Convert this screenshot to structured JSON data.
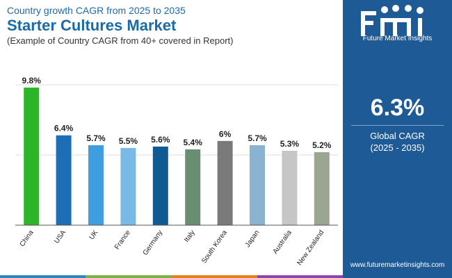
{
  "header": {
    "subtitle": "Country growth CAGR from 2025 to 2035",
    "title": "Starter Cultures Market",
    "note": "(Example of Country CAGR from 40+ covered in Report)"
  },
  "chart_data": {
    "type": "bar",
    "categories": [
      "China",
      "USA",
      "UK",
      "France",
      "Germany",
      "Italy",
      "South Korea",
      "Japan",
      "Australia",
      "New Zealand"
    ],
    "values": [
      9.8,
      6.4,
      5.7,
      5.5,
      5.6,
      5.4,
      6,
      5.7,
      5.3,
      5.2
    ],
    "labels": [
      "9.8%",
      "6.4%",
      "5.7%",
      "5.5%",
      "5.6%",
      "5.4%",
      "6%",
      "5.7%",
      "5.3%",
      "5.2%"
    ],
    "colors": [
      "#2db52a",
      "#1c6eb5",
      "#3f9ee0",
      "#79b9e6",
      "#0f5a93",
      "#6a8e72",
      "#7a7a7a",
      "#8ab3cf",
      "#c6c6c6",
      "#9aa690"
    ],
    "ylim": [
      0,
      10
    ],
    "grid": true,
    "xlabel": "",
    "ylabel": ""
  },
  "panel": {
    "logo_text": "Future Market Insights",
    "kpi_value": "6.3%",
    "kpi_label": "Global CAGR",
    "kpi_period": "(2025 - 2035)",
    "website": "www.futuremarketinsights.com",
    "bg_color": "#1e5b96"
  },
  "bottom_bar_colors": [
    "#2e86c1",
    "#7cb342",
    "#e67e22",
    "#8e44ad"
  ]
}
